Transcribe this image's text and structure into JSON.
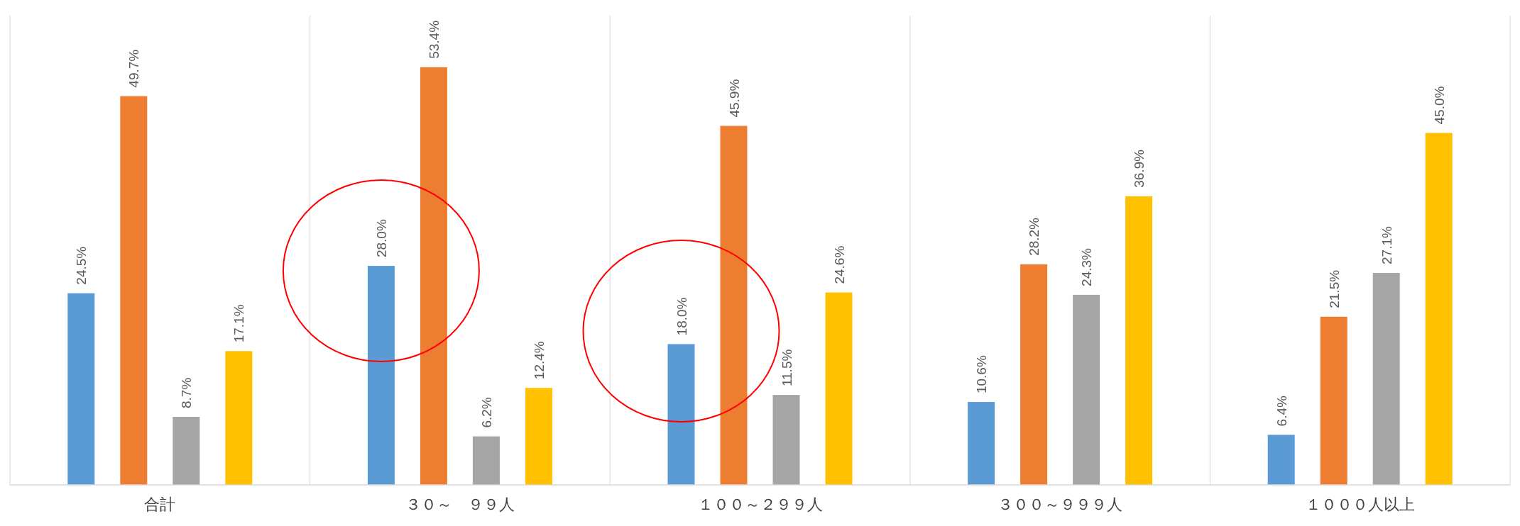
{
  "chart_data": {
    "type": "bar",
    "categories": [
      "合計",
      "３０～　９９人",
      "１００～２９９人",
      "３００～９９９人",
      "１０００人以上"
    ],
    "series": [
      {
        "color": "#5b9bd5",
        "values": [
          24.5,
          28.0,
          18.0,
          10.6,
          6.4
        ],
        "value_labels": [
          "24.5%",
          "28.0%",
          "18.0%",
          "10.6%",
          "6.4%"
        ]
      },
      {
        "color": "#ed7d31",
        "values": [
          49.7,
          53.4,
          45.9,
          28.2,
          21.5
        ],
        "value_labels": [
          "49.7%",
          "53.4%",
          "45.9%",
          "28.2%",
          "21.5%"
        ]
      },
      {
        "color": "#a5a5a5",
        "values": [
          8.7,
          6.2,
          11.5,
          24.3,
          27.1
        ],
        "value_labels": [
          "8.7%",
          "6.2%",
          "11.5%",
          "24.3%",
          "27.1%"
        ]
      },
      {
        "color": "#ffc000",
        "values": [
          17.1,
          12.4,
          24.6,
          36.9,
          45.0
        ],
        "value_labels": [
          "17.1%",
          "12.4%",
          "24.6%",
          "36.9%",
          "45.0%"
        ]
      }
    ],
    "ylim": [
      0,
      60
    ]
  }
}
